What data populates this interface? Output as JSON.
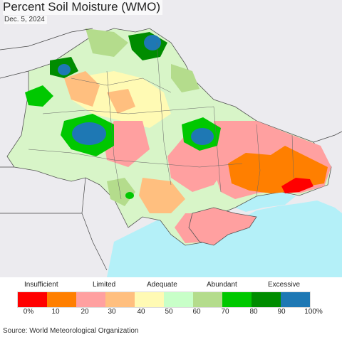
{
  "header": {
    "title": "Percent Soil Moisture (WMO)",
    "date": "Dec. 5, 2024"
  },
  "legend": {
    "categories": [
      "Insufficient",
      "Limited",
      "Adequate",
      "Abundant",
      "Excessive"
    ],
    "tick_labels": [
      "0%",
      "10",
      "20",
      "30",
      "40",
      "50",
      "60",
      "70",
      "80",
      "90",
      "100%"
    ],
    "colors": [
      "#ff0000",
      "#ff7f00",
      "#ffa0a0",
      "#ffbf7f",
      "#fffab4",
      "#c8ffc8",
      "#b4dc8c",
      "#00c800",
      "#008c00",
      "#1e78b4"
    ]
  },
  "footer": {
    "source": "Source: World Meteorological Organization"
  },
  "map": {
    "background_land": "#ecebef",
    "sea": "#b4f0f8"
  }
}
